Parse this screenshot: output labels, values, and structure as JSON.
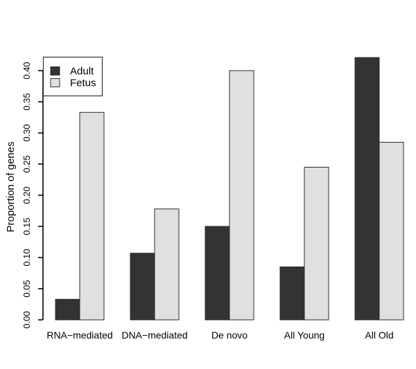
{
  "figure": {
    "background": "#ffffff"
  },
  "chart_data": {
    "type": "bar",
    "title": "",
    "categories": [
      "RNA−mediated",
      "DNA−mediated",
      "De novo",
      "All Young",
      "All Old"
    ],
    "series": [
      {
        "name": "Adult",
        "color": "#333333",
        "values": [
          0.033,
          0.107,
          0.15,
          0.085,
          0.421
        ]
      },
      {
        "name": "Fetus",
        "color": "#e0e0e0",
        "values": [
          0.333,
          0.178,
          0.4,
          0.245,
          0.285
        ]
      }
    ],
    "xlabel": "",
    "ylabel": "Proportion of genes",
    "ylim": [
      0,
      0.45
    ],
    "ytick_labels": [
      "0.00",
      "0.05",
      "0.10",
      "0.15",
      "0.20",
      "0.25",
      "0.30",
      "0.35",
      "0.40"
    ],
    "grid": false,
    "legend": {
      "position": "top-left",
      "entries": [
        "Adult",
        "Fetus"
      ]
    },
    "colors": {
      "bar_border": "#2b2b2b",
      "axis": "#000000",
      "legend_border": "#333333",
      "legend_background": "#ffffff"
    }
  }
}
